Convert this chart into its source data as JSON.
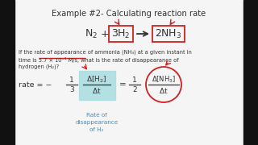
{
  "title": "Example #2- Calculating reaction rate",
  "bg_color": "#f5f5f5",
  "text_color": "#333333",
  "red_color": "#cc2222",
  "blue_color": "#5588aa",
  "cyan_color": "#a8dde0",
  "black_bar": "#111111",
  "description_line1": "If the rate of appearance of ammonia (NH₃) at a given instant in",
  "description_line2": "time is 5.7 × 10⁻¹ M/s, what is the rate of disappearance of",
  "description_line3": "hydrogen (H₂)?",
  "annotation": "Rate of\ndisappearance\nof H₂"
}
